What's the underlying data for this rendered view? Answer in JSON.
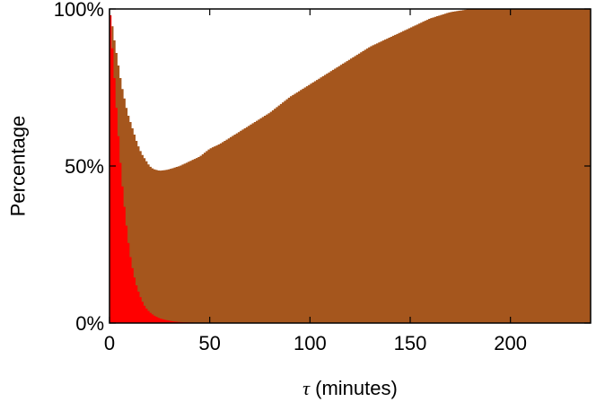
{
  "chart_data": {
    "type": "area",
    "title": "",
    "xlabel": "τ (minutes)",
    "xlabel_symbol": "τ",
    "xlabel_rest": " (minutes)",
    "ylabel": "Percentage",
    "xlim": [
      0,
      240
    ],
    "ylim": [
      0,
      100
    ],
    "x_ticks": [
      0,
      50,
      100,
      150,
      200
    ],
    "x_tick_labels": [
      "0",
      "50",
      "100",
      "150",
      "200"
    ],
    "y_ticks": [
      0,
      50,
      100
    ],
    "y_tick_labels": [
      "0%",
      "50%",
      "100%"
    ],
    "grid": false,
    "legend": "none",
    "series": [
      {
        "color": "#a5561d",
        "points": [
          [
            0,
            0
          ],
          [
            1,
            97
          ],
          [
            2,
            92
          ],
          [
            3,
            88
          ],
          [
            4,
            84
          ],
          [
            5,
            80
          ],
          [
            6,
            76
          ],
          [
            7,
            73
          ],
          [
            8,
            70
          ],
          [
            9,
            67
          ],
          [
            10,
            65
          ],
          [
            12,
            61
          ],
          [
            14,
            57
          ],
          [
            16,
            54
          ],
          [
            18,
            52
          ],
          [
            20,
            50
          ],
          [
            22,
            49
          ],
          [
            25,
            48.5
          ],
          [
            28,
            48.7
          ],
          [
            30,
            49
          ],
          [
            35,
            50
          ],
          [
            40,
            51.5
          ],
          [
            45,
            53
          ],
          [
            50,
            55.5
          ],
          [
            55,
            57
          ],
          [
            60,
            59
          ],
          [
            65,
            61
          ],
          [
            70,
            63
          ],
          [
            75,
            65
          ],
          [
            80,
            67
          ],
          [
            85,
            69.5
          ],
          [
            90,
            72
          ],
          [
            95,
            74
          ],
          [
            100,
            76
          ],
          [
            105,
            78
          ],
          [
            110,
            80
          ],
          [
            115,
            82
          ],
          [
            120,
            84
          ],
          [
            125,
            86
          ],
          [
            130,
            88
          ],
          [
            135,
            89.5
          ],
          [
            140,
            91
          ],
          [
            145,
            92.5
          ],
          [
            150,
            94
          ],
          [
            155,
            95.5
          ],
          [
            160,
            97
          ],
          [
            165,
            98
          ],
          [
            170,
            99
          ],
          [
            175,
            99.5
          ],
          [
            180,
            100
          ],
          [
            240,
            100
          ]
        ]
      },
      {
        "color": "#ff0000",
        "points": [
          [
            0,
            0
          ],
          [
            0.5,
            98
          ],
          [
            1,
            92
          ],
          [
            2,
            83
          ],
          [
            3,
            73
          ],
          [
            4,
            64
          ],
          [
            5,
            55
          ],
          [
            6,
            47
          ],
          [
            7,
            40
          ],
          [
            8,
            34
          ],
          [
            9,
            28
          ],
          [
            10,
            23
          ],
          [
            11,
            19
          ],
          [
            12,
            16
          ],
          [
            13,
            13
          ],
          [
            14,
            11
          ],
          [
            15,
            9
          ],
          [
            16,
            7.5
          ],
          [
            17,
            6
          ],
          [
            18,
            5
          ],
          [
            20,
            3.5
          ],
          [
            22,
            2.5
          ],
          [
            25,
            1.5
          ],
          [
            28,
            1
          ],
          [
            32,
            0.5
          ],
          [
            36,
            0.3
          ],
          [
            40,
            0.2
          ],
          [
            45,
            0.1
          ],
          [
            50,
            0
          ],
          [
            240,
            0
          ]
        ]
      }
    ],
    "axis_color": "#000000"
  }
}
